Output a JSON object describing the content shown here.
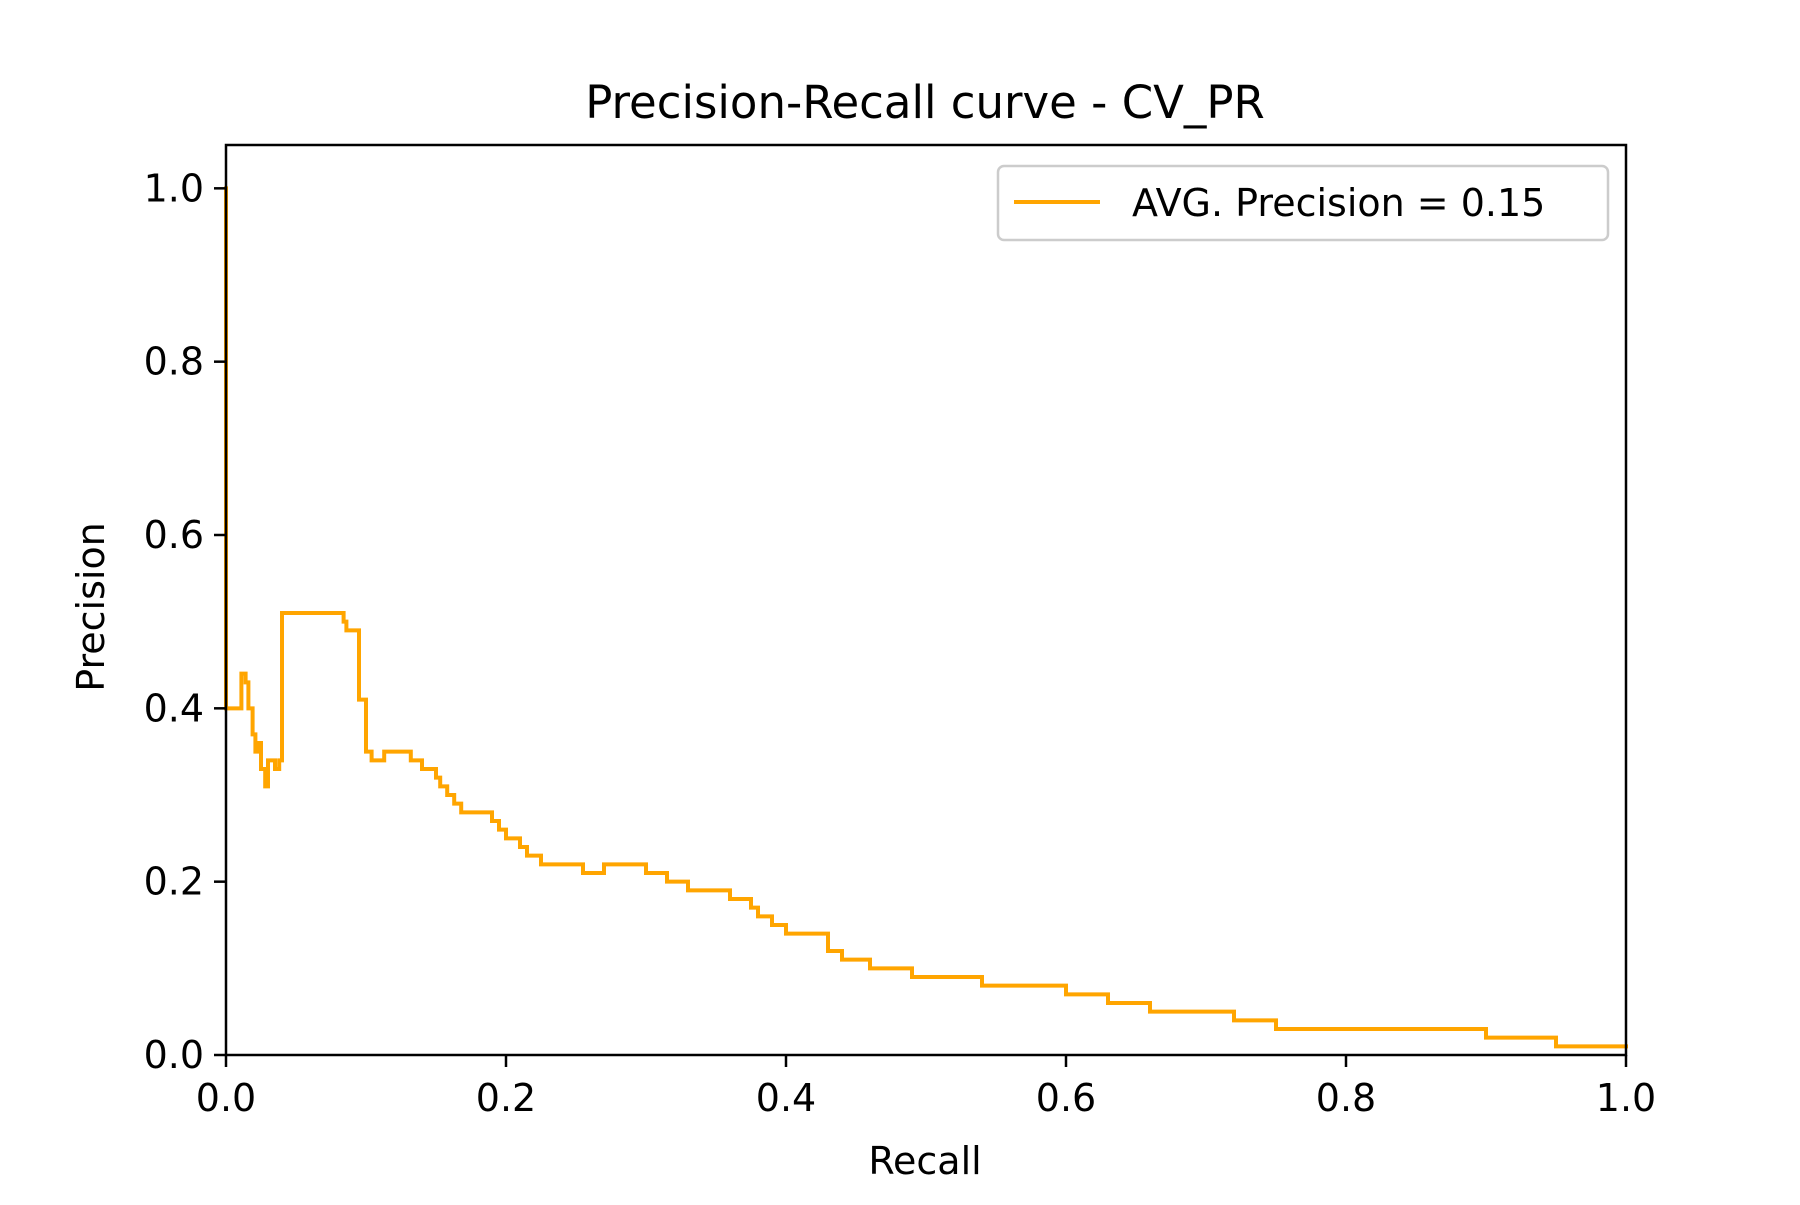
{
  "chart_data": {
    "type": "line",
    "title": "Precision-Recall curve - CV_PR",
    "xlabel": "Recall",
    "ylabel": "Precision",
    "xlim": [
      0.0,
      1.0
    ],
    "ylim": [
      0.0,
      1.05
    ],
    "xticks": [
      "0.0",
      "0.2",
      "0.4",
      "0.6",
      "0.8",
      "1.0"
    ],
    "yticks": [
      "0.0",
      "0.2",
      "0.4",
      "0.6",
      "0.8",
      "1.0"
    ],
    "grid": false,
    "legend_position": "top-right",
    "series": [
      {
        "name": "AVG. Precision = 0.15",
        "color": "#FFA500",
        "step": true,
        "points": [
          [
            0.0,
            1.0
          ],
          [
            0.0,
            0.4
          ],
          [
            0.011,
            0.4
          ],
          [
            0.011,
            0.44
          ],
          [
            0.014,
            0.43
          ],
          [
            0.016,
            0.4
          ],
          [
            0.019,
            0.37
          ],
          [
            0.021,
            0.35
          ],
          [
            0.023,
            0.36
          ],
          [
            0.025,
            0.33
          ],
          [
            0.028,
            0.31
          ],
          [
            0.03,
            0.34
          ],
          [
            0.033,
            0.34
          ],
          [
            0.035,
            0.33
          ],
          [
            0.038,
            0.34
          ],
          [
            0.04,
            0.34
          ],
          [
            0.04,
            0.51
          ],
          [
            0.08,
            0.51
          ],
          [
            0.082,
            0.51
          ],
          [
            0.084,
            0.5
          ],
          [
            0.086,
            0.49
          ],
          [
            0.095,
            0.49
          ],
          [
            0.095,
            0.41
          ],
          [
            0.1,
            0.41
          ],
          [
            0.1,
            0.35
          ],
          [
            0.104,
            0.34
          ],
          [
            0.11,
            0.34
          ],
          [
            0.113,
            0.35
          ],
          [
            0.13,
            0.35
          ],
          [
            0.132,
            0.34
          ],
          [
            0.14,
            0.33
          ],
          [
            0.148,
            0.33
          ],
          [
            0.15,
            0.32
          ],
          [
            0.153,
            0.31
          ],
          [
            0.158,
            0.3
          ],
          [
            0.163,
            0.29
          ],
          [
            0.168,
            0.28
          ],
          [
            0.175,
            0.28
          ],
          [
            0.185,
            0.28
          ],
          [
            0.19,
            0.27
          ],
          [
            0.195,
            0.26
          ],
          [
            0.2,
            0.25
          ],
          [
            0.21,
            0.24
          ],
          [
            0.215,
            0.23
          ],
          [
            0.225,
            0.22
          ],
          [
            0.23,
            0.22
          ],
          [
            0.25,
            0.22
          ],
          [
            0.255,
            0.21
          ],
          [
            0.27,
            0.22
          ],
          [
            0.29,
            0.22
          ],
          [
            0.3,
            0.21
          ],
          [
            0.315,
            0.2
          ],
          [
            0.325,
            0.2
          ],
          [
            0.33,
            0.19
          ],
          [
            0.35,
            0.19
          ],
          [
            0.36,
            0.18
          ],
          [
            0.37,
            0.18
          ],
          [
            0.375,
            0.17
          ],
          [
            0.38,
            0.16
          ],
          [
            0.39,
            0.15
          ],
          [
            0.4,
            0.14
          ],
          [
            0.42,
            0.14
          ],
          [
            0.43,
            0.12
          ],
          [
            0.44,
            0.11
          ],
          [
            0.46,
            0.1
          ],
          [
            0.48,
            0.1
          ],
          [
            0.49,
            0.09
          ],
          [
            0.52,
            0.09
          ],
          [
            0.54,
            0.08
          ],
          [
            0.55,
            0.08
          ],
          [
            0.58,
            0.08
          ],
          [
            0.6,
            0.07
          ],
          [
            0.63,
            0.06
          ],
          [
            0.66,
            0.05
          ],
          [
            0.7,
            0.05
          ],
          [
            0.72,
            0.04
          ],
          [
            0.75,
            0.03
          ],
          [
            0.8,
            0.03
          ],
          [
            0.85,
            0.03
          ],
          [
            0.9,
            0.02
          ],
          [
            0.95,
            0.01
          ],
          [
            1.0,
            0.01
          ]
        ]
      }
    ]
  }
}
